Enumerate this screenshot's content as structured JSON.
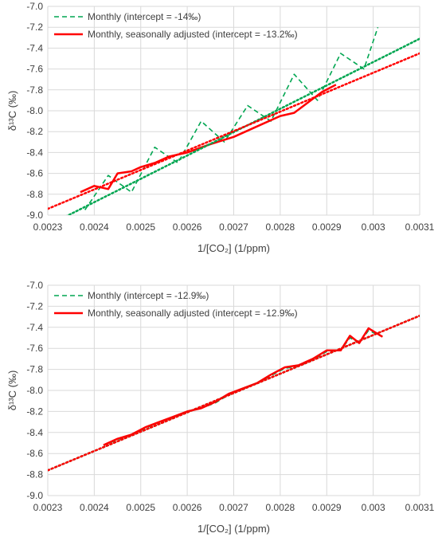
{
  "colors": {
    "green": "#00a651",
    "red": "#ff0000",
    "trend_green": "#00a651",
    "trend_red": "#ff0000",
    "grid": "#d9d9d9",
    "text": "#404040"
  },
  "chart_data": [
    {
      "type": "line",
      "xlabel": "1/[CO₂] (1/ppm)",
      "ylabel": "δ¹³C (‰)",
      "xlim": [
        0.0023,
        0.0031
      ],
      "ylim": [
        -9.0,
        -7.0
      ],
      "x_ticks": [
        "0.0023",
        "0.0024",
        "0.0025",
        "0.0026",
        "0.0027",
        "0.0028",
        "0.0029",
        "0.003",
        "0.0031"
      ],
      "y_ticks": [
        "-7.0",
        "-7.2",
        "-7.4",
        "-7.6",
        "-7.8",
        "-8.0",
        "-8.2",
        "-8.4",
        "-8.6",
        "-8.8",
        "-9.0"
      ],
      "grid": true,
      "legend": "top-left",
      "series": [
        {
          "name": "Monthly (intercept = -14‰)",
          "style": "dashed",
          "color": "#00a651",
          "x": [
            0.00238,
            0.00243,
            0.00248,
            0.00253,
            0.00258,
            0.00263,
            0.00268,
            0.00273,
            0.00278,
            0.00283,
            0.00288,
            0.00293,
            0.00298,
            0.00301
          ],
          "y": [
            -8.95,
            -8.62,
            -8.78,
            -8.35,
            -8.5,
            -8.1,
            -8.3,
            -7.95,
            -8.1,
            -7.65,
            -7.9,
            -7.45,
            -7.6,
            -7.2
          ]
        },
        {
          "name": "Monthly, seasonally adjusted (intercept = -13.2‰)",
          "style": "solid",
          "color": "#ff0000",
          "x": [
            0.00237,
            0.0024,
            0.00243,
            0.00245,
            0.00248,
            0.0025,
            0.00253,
            0.00256,
            0.0026,
            0.00265,
            0.0027,
            0.00275,
            0.0028,
            0.00283,
            0.00286,
            0.00289,
            0.00292
          ],
          "y": [
            -8.78,
            -8.72,
            -8.75,
            -8.6,
            -8.58,
            -8.54,
            -8.5,
            -8.44,
            -8.4,
            -8.32,
            -8.25,
            -8.15,
            -8.05,
            -8.02,
            -7.92,
            -7.82,
            -7.75
          ]
        }
      ],
      "trendlines": [
        {
          "series": "Monthly (intercept = -14‰)",
          "style": "dotted",
          "color": "#00a651",
          "x": [
            0.0023,
            0.0031
          ],
          "y": [
            -9.1,
            -7.31
          ]
        },
        {
          "series": "Monthly, seasonally adjusted (intercept = -13.2‰)",
          "style": "dotted",
          "color": "#ff0000",
          "x": [
            0.0023,
            0.0031
          ],
          "y": [
            -8.94,
            -7.45
          ]
        }
      ]
    },
    {
      "type": "line",
      "xlabel": "1/[CO₂] (1/ppm)",
      "ylabel": "δ¹³C (‰)",
      "xlim": [
        0.0023,
        0.0031
      ],
      "ylim": [
        -9.0,
        -7.0
      ],
      "x_ticks": [
        "0.0023",
        "0.0024",
        "0.0025",
        "0.0026",
        "0.0027",
        "0.0028",
        "0.0029",
        "0.003",
        "0.0031"
      ],
      "y_ticks": [
        "-7.0",
        "-7.2",
        "-7.4",
        "-7.6",
        "-7.8",
        "-8.0",
        "-8.2",
        "-8.4",
        "-8.6",
        "-8.8",
        "-9.0"
      ],
      "grid": true,
      "legend": "top-left",
      "series": [
        {
          "name": "Monthly (intercept = -12.9‰)",
          "style": "dashed",
          "color": "#00a651",
          "x": [
            0.00242,
            0.00245,
            0.00248,
            0.00251,
            0.00254,
            0.00257,
            0.0026,
            0.00263,
            0.00266,
            0.00269,
            0.00272,
            0.00275,
            0.00278,
            0.00281,
            0.00284,
            0.00287,
            0.0029,
            0.00293,
            0.00295,
            0.00297,
            0.00299,
            0.00302
          ],
          "y": [
            -8.52,
            -8.47,
            -8.42,
            -8.36,
            -8.3,
            -8.26,
            -8.2,
            -8.17,
            -8.12,
            -8.04,
            -7.98,
            -7.93,
            -7.86,
            -7.79,
            -7.77,
            -7.71,
            -7.63,
            -7.62,
            -7.5,
            -7.55,
            -7.43,
            -7.49
          ]
        },
        {
          "name": "Monthly, seasonally adjusted (intercept = -12.9‰)",
          "style": "solid",
          "color": "#ff0000",
          "x": [
            0.00242,
            0.00245,
            0.00248,
            0.00251,
            0.00254,
            0.00257,
            0.0026,
            0.00263,
            0.00266,
            0.00269,
            0.00272,
            0.00275,
            0.00278,
            0.00281,
            0.00284,
            0.00287,
            0.0029,
            0.00293,
            0.00295,
            0.00297,
            0.00299,
            0.00302
          ],
          "y": [
            -8.52,
            -8.46,
            -8.42,
            -8.35,
            -8.3,
            -8.25,
            -8.2,
            -8.17,
            -8.11,
            -8.03,
            -7.98,
            -7.93,
            -7.85,
            -7.78,
            -7.76,
            -7.7,
            -7.62,
            -7.62,
            -7.48,
            -7.55,
            -7.41,
            -7.49
          ]
        }
      ],
      "trendlines": [
        {
          "series": "Monthly (intercept = -12.9‰)",
          "style": "dotted",
          "color": "#00a651",
          "x": [
            0.0023,
            0.0031
          ],
          "y": [
            -8.76,
            -7.29
          ]
        },
        {
          "series": "Monthly, seasonally adjusted (intercept = -12.9‰)",
          "style": "dotted",
          "color": "#ff0000",
          "x": [
            0.0023,
            0.0031
          ],
          "y": [
            -8.76,
            -7.29
          ]
        }
      ]
    }
  ]
}
